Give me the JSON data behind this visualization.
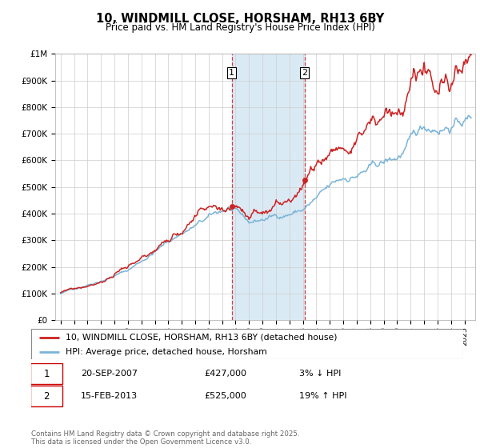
{
  "title": "10, WINDMILL CLOSE, HORSHAM, RH13 6BY",
  "subtitle": "Price paid vs. HM Land Registry's House Price Index (HPI)",
  "legend_line1": "10, WINDMILL CLOSE, HORSHAM, RH13 6BY (detached house)",
  "legend_line2": "HPI: Average price, detached house, Horsham",
  "transaction1_date": "20-SEP-2007",
  "transaction1_price": "£427,000",
  "transaction1_hpi": "3% ↓ HPI",
  "transaction2_date": "15-FEB-2013",
  "transaction2_price": "£525,000",
  "transaction2_hpi": "19% ↑ HPI",
  "footnote": "Contains HM Land Registry data © Crown copyright and database right 2025.\nThis data is licensed under the Open Government Licence v3.0.",
  "hpi_color": "#7ab4d8",
  "price_color": "#cc2222",
  "marker_color": "#cc2222",
  "shading_color": "#daeaf5",
  "vline_color": "#cc2222",
  "ylim_min": 0,
  "ylim_max": 1000000,
  "yticks": [
    0,
    100000,
    200000,
    300000,
    400000,
    500000,
    600000,
    700000,
    800000,
    900000,
    1000000
  ],
  "ytick_labels": [
    "£0",
    "£100K",
    "£200K",
    "£300K",
    "£400K",
    "£500K",
    "£600K",
    "£700K",
    "£800K",
    "£900K",
    "£1M"
  ],
  "transaction1_x": 2007.72,
  "transaction1_y": 427000,
  "transaction2_x": 2013.12,
  "transaction2_y": 525000,
  "xmin": 1994.6,
  "xmax": 2025.8
}
